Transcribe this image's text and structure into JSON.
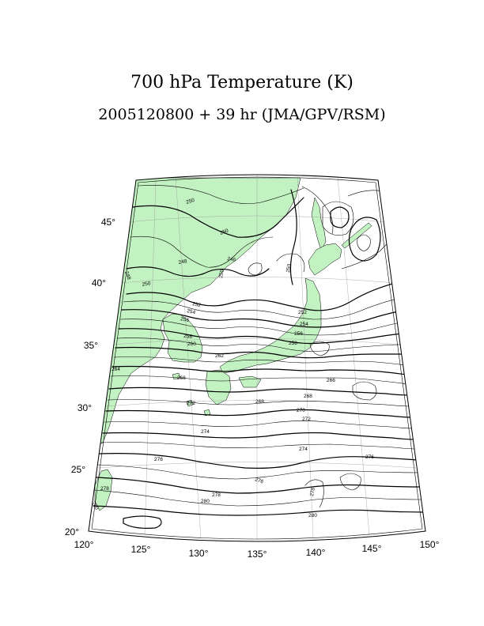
{
  "title": "700 hPa Temperature (K)",
  "subtitle": "2005120800 + 39 hr (JMA/GPV/RSM)",
  "map": {
    "lon_range": [
      120,
      150
    ],
    "lat_range": [
      20,
      47
    ],
    "lon_ticks": [
      "120°",
      "125°",
      "130°",
      "135°",
      "140°",
      "145°",
      "150°"
    ],
    "lat_ticks": [
      "20°",
      "25°",
      "30°",
      "35°",
      "40°",
      "45°"
    ],
    "land_color": "#c2f2c2",
    "contour_color": "#000000",
    "grid_color": "#9a9a9a"
  },
  "contour_labels": [
    "250",
    "250",
    "248",
    "248",
    "250",
    "246",
    "250",
    "252",
    "254",
    "256",
    "258",
    "260",
    "262",
    "264",
    "250",
    "252",
    "254",
    "256",
    "258",
    "266",
    "266",
    "268",
    "268",
    "270",
    "272",
    "272",
    "274",
    "274",
    "276",
    "276",
    "276",
    "278",
    "278",
    "278",
    "280",
    "280",
    "280"
  ]
}
